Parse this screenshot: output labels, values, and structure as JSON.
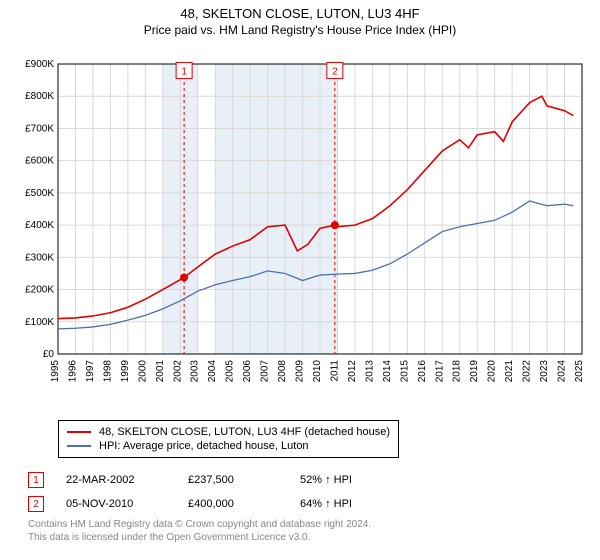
{
  "header": {
    "title": "48, SKELTON CLOSE, LUTON, LU3 4HF",
    "subtitle": "Price paid vs. HM Land Registry's House Price Index (HPI)"
  },
  "chart": {
    "type": "line",
    "background_color": "#ffffff",
    "plot_border_color": "#000000",
    "grid_color": "#d9d9d9",
    "shaded_bands": [
      {
        "x_from": 2001,
        "x_to": 2003,
        "fill": "#e9eff7"
      },
      {
        "x_from": 2004,
        "x_to": 2011,
        "fill": "#e9eff7"
      }
    ],
    "y_axis": {
      "min": 0,
      "max": 900000,
      "tick_step": 100000,
      "tick_labels": [
        "£0",
        "£100K",
        "£200K",
        "£300K",
        "£400K",
        "£500K",
        "£600K",
        "£700K",
        "£800K",
        "£900K"
      ],
      "label_fontsize": 10
    },
    "x_axis": {
      "min": 1995,
      "max": 2025,
      "tick_step": 1,
      "tick_labels": [
        "1995",
        "1996",
        "1997",
        "1998",
        "1999",
        "2000",
        "2001",
        "2002",
        "2003",
        "2004",
        "2005",
        "2006",
        "2007",
        "2008",
        "2009",
        "2010",
        "2011",
        "2012",
        "2013",
        "2014",
        "2015",
        "2016",
        "2017",
        "2018",
        "2019",
        "2020",
        "2021",
        "2022",
        "2023",
        "2024",
        "2025"
      ],
      "label_fontsize": 10,
      "rotation": -90
    },
    "series": [
      {
        "name": "property",
        "label": "48, SKELTON CLOSE, LUTON, LU3 4HF (detached house)",
        "color": "#e00000",
        "line_width": 1.6,
        "data": [
          [
            1995,
            110000
          ],
          [
            1996,
            112000
          ],
          [
            1997,
            118000
          ],
          [
            1998,
            128000
          ],
          [
            1999,
            145000
          ],
          [
            2000,
            170000
          ],
          [
            2001,
            200000
          ],
          [
            2002.22,
            237500
          ],
          [
            2003,
            270000
          ],
          [
            2004,
            310000
          ],
          [
            2005,
            335000
          ],
          [
            2006,
            355000
          ],
          [
            2007,
            395000
          ],
          [
            2008,
            400000
          ],
          [
            2008.7,
            320000
          ],
          [
            2009.3,
            340000
          ],
          [
            2010,
            390000
          ],
          [
            2010.85,
            400000
          ],
          [
            2011,
            395000
          ],
          [
            2012,
            400000
          ],
          [
            2013,
            420000
          ],
          [
            2014,
            460000
          ],
          [
            2015,
            510000
          ],
          [
            2016,
            570000
          ],
          [
            2017,
            630000
          ],
          [
            2018,
            665000
          ],
          [
            2018.5,
            640000
          ],
          [
            2019,
            680000
          ],
          [
            2020,
            690000
          ],
          [
            2020.5,
            660000
          ],
          [
            2021,
            720000
          ],
          [
            2022,
            780000
          ],
          [
            2022.7,
            800000
          ],
          [
            2023,
            770000
          ],
          [
            2024,
            755000
          ],
          [
            2024.5,
            740000
          ]
        ]
      },
      {
        "name": "hpi",
        "label": "HPI: Average price, detached house, Luton",
        "color": "#4a6fb3",
        "line_width": 1.3,
        "data": [
          [
            1995,
            78000
          ],
          [
            1996,
            80000
          ],
          [
            1997,
            84000
          ],
          [
            1998,
            92000
          ],
          [
            1999,
            105000
          ],
          [
            2000,
            120000
          ],
          [
            2001,
            140000
          ],
          [
            2002,
            165000
          ],
          [
            2003,
            195000
          ],
          [
            2004,
            215000
          ],
          [
            2005,
            228000
          ],
          [
            2006,
            240000
          ],
          [
            2007,
            258000
          ],
          [
            2008,
            250000
          ],
          [
            2009,
            228000
          ],
          [
            2010,
            245000
          ],
          [
            2011,
            248000
          ],
          [
            2012,
            250000
          ],
          [
            2013,
            260000
          ],
          [
            2014,
            280000
          ],
          [
            2015,
            310000
          ],
          [
            2016,
            345000
          ],
          [
            2017,
            380000
          ],
          [
            2018,
            395000
          ],
          [
            2019,
            405000
          ],
          [
            2020,
            415000
          ],
          [
            2021,
            440000
          ],
          [
            2022,
            475000
          ],
          [
            2023,
            460000
          ],
          [
            2024,
            465000
          ],
          [
            2024.5,
            460000
          ]
        ]
      }
    ],
    "markers": [
      {
        "id": "1",
        "x": 2002.22,
        "y": 237500,
        "color": "#e00000",
        "radius": 4,
        "vline_color": "#e00000",
        "vline_dash": "3,3",
        "badge_y": 880000
      },
      {
        "id": "2",
        "x": 2010.85,
        "y": 400000,
        "color": "#e00000",
        "radius": 4,
        "vline_color": "#e00000",
        "vline_dash": "3,3",
        "badge_y": 880000
      }
    ]
  },
  "legend": {
    "series0": "48, SKELTON CLOSE, LUTON, LU3 4HF (detached house)",
    "series1": "HPI: Average price, detached house, Luton"
  },
  "events": {
    "row1": {
      "badge": "1",
      "date": "22-MAR-2002",
      "price": "£237,500",
      "delta": "52% ↑ HPI"
    },
    "row2": {
      "badge": "2",
      "date": "05-NOV-2010",
      "price": "£400,000",
      "delta": "64% ↑ HPI"
    }
  },
  "footer": {
    "line1": "Contains HM Land Registry data © Crown copyright and database right 2024.",
    "line2": "This data is licensed under the Open Government Licence v3.0."
  }
}
